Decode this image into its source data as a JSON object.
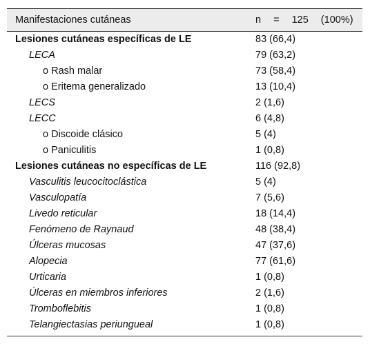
{
  "table": {
    "header": [
      "Manifestaciones cutáneas",
      "n = 125 (100%)"
    ],
    "rows": [
      {
        "label": "Lesiones cutáneas específicas de LE",
        "value": "83 (66,4)",
        "level": 0,
        "style": "bold"
      },
      {
        "label": "LECA",
        "value": "79 (63,2)",
        "level": 1,
        "style": "italic"
      },
      {
        "label": "o Rash malar",
        "value": "73 (58,4)",
        "level": 2,
        "style": "normal"
      },
      {
        "label": "o Eritema generalizado",
        "value": "13 (10,4)",
        "level": 2,
        "style": "normal"
      },
      {
        "label": "LECS",
        "value": "2 (1,6)",
        "level": 1,
        "style": "italic"
      },
      {
        "label": "LECC",
        "value": "6 (4,8)",
        "level": 1,
        "style": "italic"
      },
      {
        "label": "o Discoide clásico",
        "value": "5 (4)",
        "level": 2,
        "style": "normal"
      },
      {
        "label": "o Paniculitis",
        "value": "1 (0,8)",
        "level": 2,
        "style": "normal"
      },
      {
        "label": "Lesiones cutáneas no específicas de LE",
        "value": "116 (92,8)",
        "level": 0,
        "style": "bold"
      },
      {
        "label": "Vasculitis leucocitoclástica",
        "value": "5 (4)",
        "level": 1,
        "style": "italic"
      },
      {
        "label": "Vasculopatía",
        "value": "7 (5,6)",
        "level": 1,
        "style": "italic"
      },
      {
        "label": "Livedo reticular",
        "value": "18 (14,4)",
        "level": 1,
        "style": "italic"
      },
      {
        "label": "Fenómeno de Raynaud",
        "value": "48 (38,4)",
        "level": 1,
        "style": "italic"
      },
      {
        "label": "Úlceras mucosas",
        "value": "47 (37,6)",
        "level": 1,
        "style": "italic"
      },
      {
        "label": "Alopecia",
        "value": "77 (61,6)",
        "level": 1,
        "style": "italic"
      },
      {
        "label": "Urticaria",
        "value": "1 (0,8)",
        "level": 1,
        "style": "italic"
      },
      {
        "label": "Úlceras en miembros inferiores",
        "value": "2 (1,6)",
        "level": 1,
        "style": "italic"
      },
      {
        "label": "Tromboflebitis",
        "value": "1 (0,8)",
        "level": 1,
        "style": "italic"
      },
      {
        "label": "Telangiectasias periungueal",
        "value": "1 (0,8)",
        "level": 1,
        "style": "italic"
      }
    ]
  }
}
